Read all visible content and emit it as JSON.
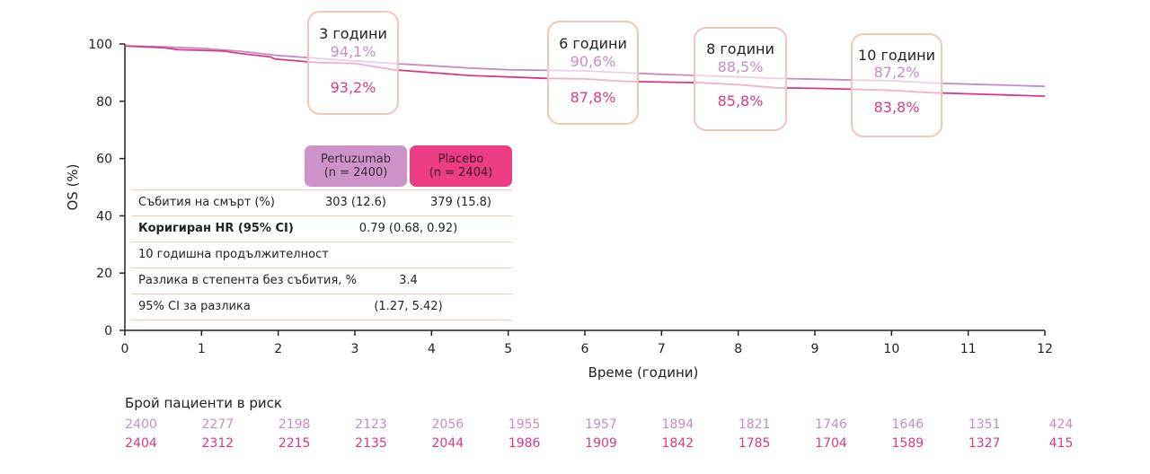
{
  "chart_data": {
    "type": "line",
    "xlabel": "Време (години)",
    "ylabel": "OS (%)",
    "xlim": [
      0,
      12
    ],
    "ylim": [
      0,
      100
    ],
    "xticks": [
      0,
      1,
      2,
      3,
      4,
      5,
      6,
      7,
      8,
      9,
      10,
      11,
      12
    ],
    "yticks": [
      0,
      20,
      40,
      60,
      80,
      100
    ],
    "series": [
      {
        "name": "Pertuzumab",
        "color": "#c88bc8",
        "points": [
          [
            0,
            99.3
          ],
          [
            0.5,
            99.0
          ],
          [
            1,
            98.5
          ],
          [
            1.5,
            97.5
          ],
          [
            2,
            96.0
          ],
          [
            2.5,
            95.0
          ],
          [
            3,
            94.1
          ],
          [
            3.5,
            93.2
          ],
          [
            4,
            92.4
          ],
          [
            4.5,
            91.6
          ],
          [
            5,
            91.0
          ],
          [
            5.5,
            90.8
          ],
          [
            6,
            90.6
          ],
          [
            6.5,
            90.0
          ],
          [
            7,
            89.4
          ],
          [
            7.5,
            89.0
          ],
          [
            8,
            88.5
          ],
          [
            8.5,
            88.0
          ],
          [
            9,
            87.7
          ],
          [
            9.5,
            87.4
          ],
          [
            10,
            87.2
          ],
          [
            10.5,
            86.4
          ],
          [
            11,
            86.0
          ],
          [
            11.5,
            85.6
          ],
          [
            12,
            85.2
          ]
        ]
      },
      {
        "name": "Placebo",
        "color": "#d83a86",
        "points": [
          [
            0,
            99.3
          ],
          [
            0.5,
            98.7
          ],
          [
            0.7,
            98.0
          ],
          [
            1,
            97.8
          ],
          [
            1.3,
            97.5
          ],
          [
            1.5,
            96.7
          ],
          [
            1.9,
            95.5
          ],
          [
            1.95,
            94.8
          ],
          [
            2.5,
            93.5
          ],
          [
            3,
            93.2
          ],
          [
            3.5,
            91.0
          ],
          [
            4,
            90.0
          ],
          [
            4.5,
            89.0
          ],
          [
            5,
            88.5
          ],
          [
            5.5,
            88.0
          ],
          [
            6,
            87.8
          ],
          [
            6.5,
            87.0
          ],
          [
            7,
            86.7
          ],
          [
            7.5,
            86.5
          ],
          [
            8,
            85.8
          ],
          [
            8.5,
            84.7
          ],
          [
            9,
            84.5
          ],
          [
            9.5,
            84.2
          ],
          [
            10,
            83.8
          ],
          [
            10.5,
            83.0
          ],
          [
            11,
            82.6
          ],
          [
            11.5,
            82.2
          ],
          [
            12,
            81.8
          ]
        ]
      }
    ],
    "annotations": [
      {
        "title": "3 години",
        "pertuzumab": "94,1%",
        "placebo": "93,2%"
      },
      {
        "title": "6 години",
        "pertuzumab": "90,6%",
        "placebo": "87,8%"
      },
      {
        "title": "8 години",
        "pertuzumab": "88,5%",
        "placebo": "85,8%"
      },
      {
        "title": "10 години",
        "pertuzumab": "87,2%",
        "placebo": "83,8%"
      }
    ]
  },
  "table": {
    "col1": {
      "name": "Pertuzumab",
      "n": "(n = 2400)"
    },
    "col2": {
      "name": "Placebo",
      "n": "(n = 2404)"
    },
    "rows": [
      {
        "label": "Събития на смърт (%)",
        "v1": "303 (12.6)",
        "v2": "379 (15.8)"
      },
      {
        "label": "Коригиран HR (95% CI)",
        "merged": "0.79 (0.68, 0.92)"
      },
      {
        "label": "10 годишна продължителност",
        "merged": ""
      },
      {
        "label": "Разлика в степента без събития, %",
        "merged": "3.4"
      },
      {
        "label": "95% CI за разлика",
        "merged": "(1.27, 5.42)"
      }
    ]
  },
  "risk": {
    "title": "Брой пациенти в риск",
    "pertuzumab": [
      "2400",
      "2277",
      "2198",
      "2123",
      "2056",
      "1955",
      "1957",
      "1894",
      "1821",
      "1746",
      "1646",
      "1351",
      "424"
    ],
    "placebo": [
      "2404",
      "2312",
      "2215",
      "2135",
      "2044",
      "1986",
      "1909",
      "1842",
      "1785",
      "1704",
      "1589",
      "1327",
      "415"
    ]
  }
}
